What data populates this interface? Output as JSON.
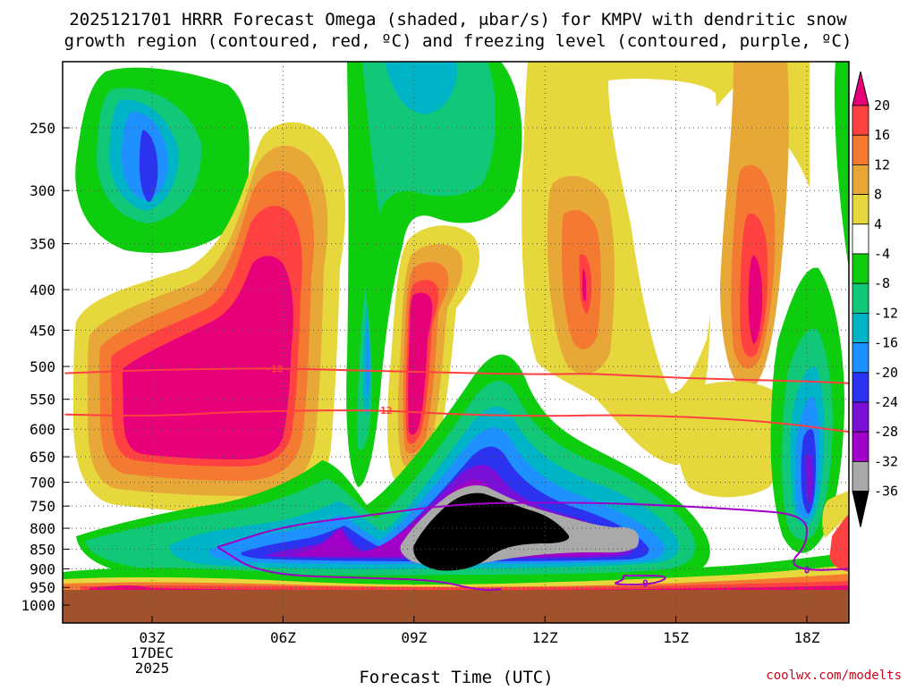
{
  "title": {
    "line1": "2025121701 HRRR Forecast Omega (shaded, μbar/s) for KMPV with dendritic snow",
    "line2": "growth region (contoured, red, ºC) and freezing level (contoured, purple, ºC)"
  },
  "credit": "coolwx.com/modelts",
  "chart_data": {
    "type": "time-height cross section (filled contours)",
    "title": "2025121701 HRRR Forecast Omega (shaded, μbar/s) for KMPV with dendritic snow growth region (contoured, red, ºC) and freezing level (contoured, purple, ºC)",
    "xlabel": "Forecast Time (UTC)",
    "ylabel": "",
    "x_ticks": [
      {
        "hour": 3,
        "label": "03Z"
      },
      {
        "hour": 6,
        "label": "06Z"
      },
      {
        "hour": 9,
        "label": "09Z"
      },
      {
        "hour": 12,
        "label": "12Z"
      },
      {
        "hour": 15,
        "label": "15Z"
      },
      {
        "hour": 18,
        "label": "18Z"
      }
    ],
    "date_label": [
      "17DEC",
      "2025"
    ],
    "xlim": [
      1,
      19
    ],
    "y_ticks": [
      250,
      300,
      350,
      400,
      450,
      500,
      550,
      600,
      650,
      700,
      750,
      800,
      850,
      900,
      950,
      1000
    ],
    "ylim": [
      1000,
      200
    ],
    "y_scale": "log-pressure",
    "grid": true,
    "colorbar": {
      "labels": [
        "20",
        "16",
        "12",
        "8",
        "4",
        "-4",
        "-8",
        "-12",
        "-16",
        "-20",
        "-24",
        "-28",
        "-32",
        "-36"
      ],
      "bins": [
        {
          "range": "> 20",
          "color": "#e8007a"
        },
        {
          "range": "16 to 20",
          "color": "#ff4141"
        },
        {
          "range": "12 to 16",
          "color": "#f47a32"
        },
        {
          "range": "8 to 12",
          "color": "#e8a838"
        },
        {
          "range": "4 to 8",
          "color": "#e6d83c"
        },
        {
          "range": "-4 to 4",
          "color": "#ffffff"
        },
        {
          "range": "-8 to -4",
          "color": "#0ecc0e"
        },
        {
          "range": "-12 to -8",
          "color": "#10c878"
        },
        {
          "range": "-16 to -12",
          "color": "#00b4c8"
        },
        {
          "range": "-20 to -16",
          "color": "#1e90ff"
        },
        {
          "range": "-24 to -20",
          "color": "#2b32f0"
        },
        {
          "range": "-28 to -24",
          "color": "#7a10d8"
        },
        {
          "range": "-32 to -28",
          "color": "#a000c8"
        },
        {
          "range": "-36 to -32",
          "color": "#a9a9a9"
        },
        {
          "range": "< -36",
          "color": "#000000"
        }
      ]
    },
    "contours": [
      {
        "value": -18,
        "label": "-18",
        "color": "#ff4040",
        "points": [
          [
            1,
            510
          ],
          [
            3,
            505
          ],
          [
            5,
            503
          ],
          [
            6,
            503
          ],
          [
            9,
            508
          ],
          [
            12,
            512
          ],
          [
            13,
            510
          ],
          [
            15,
            517
          ],
          [
            18,
            522
          ],
          [
            19,
            525
          ]
        ]
      },
      {
        "value": -12,
        "label": "-12",
        "color": "#ff4040",
        "points": [
          [
            1,
            575
          ],
          [
            3,
            578
          ],
          [
            5,
            570
          ],
          [
            8,
            567
          ],
          [
            10,
            575
          ],
          [
            12,
            578
          ],
          [
            14,
            575
          ],
          [
            17,
            585
          ],
          [
            19,
            605
          ]
        ]
      },
      {
        "value": 0,
        "label": "0",
        "color": "#a000c8",
        "points": [
          [
            4.5,
            845
          ],
          [
            6,
            795
          ],
          [
            8,
            770
          ],
          [
            10,
            745
          ],
          [
            12,
            742
          ],
          [
            14,
            745
          ],
          [
            16.5,
            757
          ],
          [
            18,
            770
          ],
          [
            18,
            840
          ],
          [
            17.6,
            885
          ],
          [
            18,
            905
          ],
          [
            19,
            900
          ]
        ]
      },
      {
        "value": 0,
        "label": "0",
        "color": "#a000c8",
        "points": [
          [
            4.5,
            845
          ],
          [
            5.5,
            915
          ],
          [
            8,
            925
          ],
          [
            9.5,
            930
          ],
          [
            10.5,
            958
          ],
          [
            11,
            955
          ]
        ]
      },
      {
        "value": 0,
        "label": "0",
        "color": "#a000c8",
        "points": [
          [
            13.8,
            918
          ],
          [
            13.8,
            930
          ],
          [
            13.5,
            942
          ],
          [
            14.5,
            942
          ],
          [
            14.9,
            918
          ],
          [
            13.8,
            918
          ]
        ]
      }
    ],
    "terrain_below_hpa": 958
  }
}
